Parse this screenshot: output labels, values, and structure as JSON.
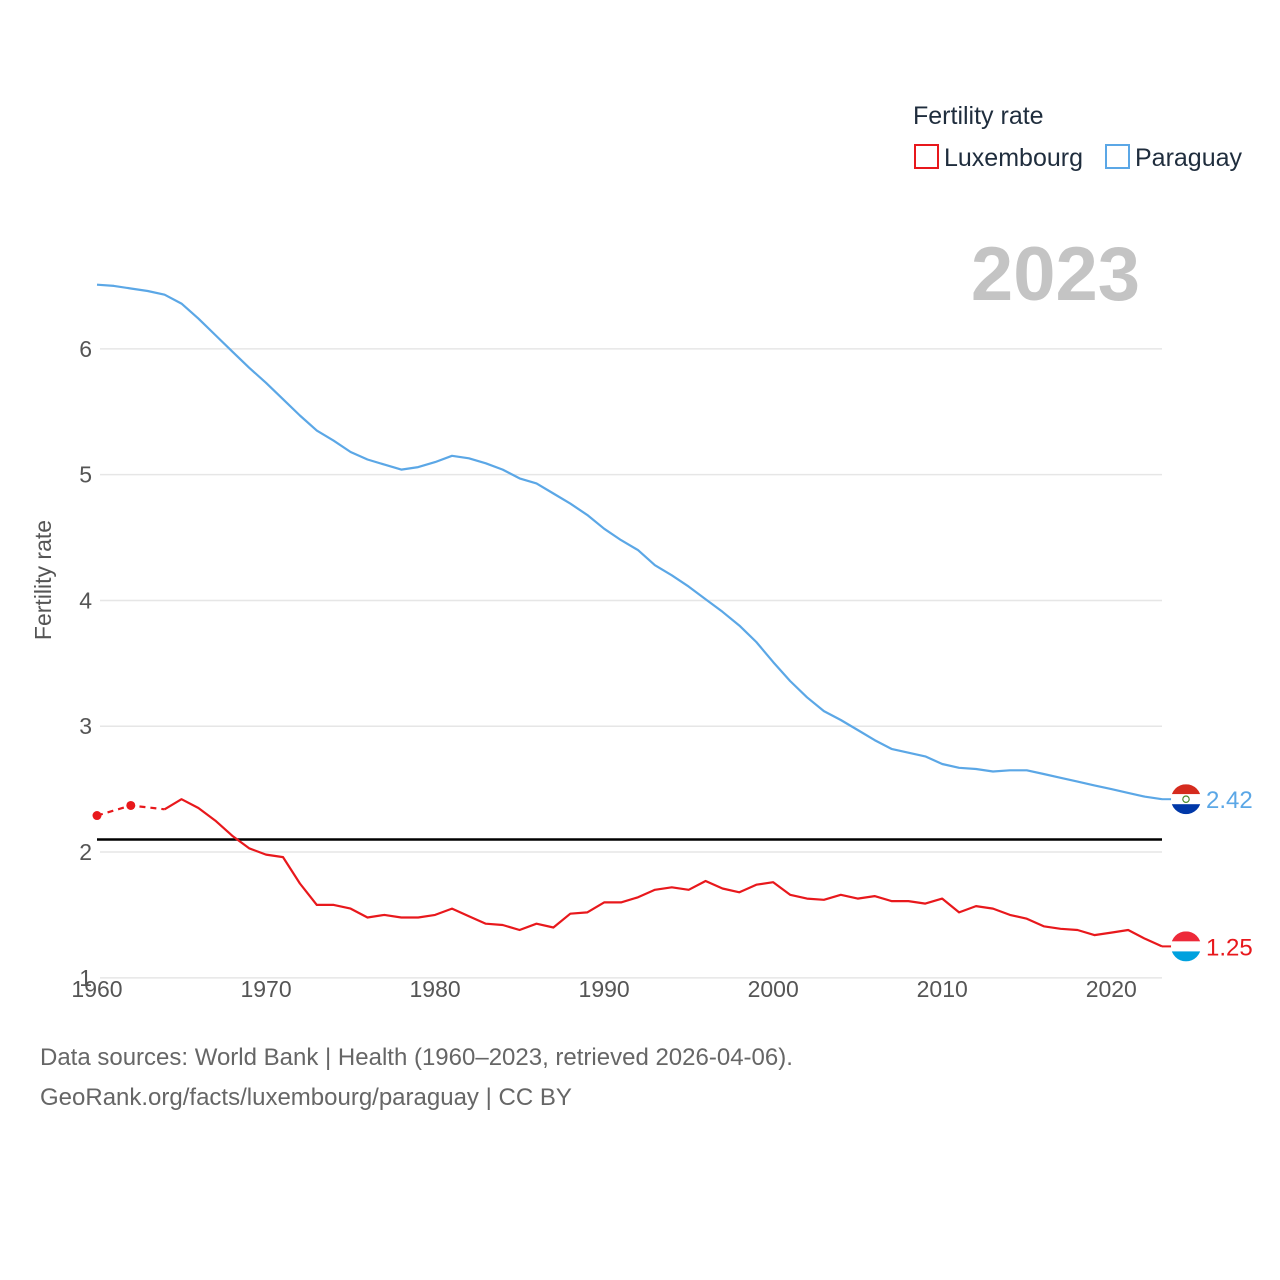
{
  "chart_data": {
    "type": "line",
    "title": "Fertility rate",
    "ylabel": "Fertility rate",
    "xlabel": "",
    "year_label": "2023",
    "xlim": [
      1960,
      2023
    ],
    "ylim": [
      0.8,
      6.7
    ],
    "x_ticks": [
      1960,
      1970,
      1980,
      1990,
      2000,
      2010,
      2020
    ],
    "y_ticks": [
      1,
      2,
      3,
      4,
      5,
      6
    ],
    "grid": true,
    "legend": {
      "title": "Fertility rate",
      "position": "top-right"
    },
    "reference_line": {
      "y": 2.1,
      "color": "#000000"
    },
    "series": [
      {
        "name": "Luxembourg",
        "color": "#e8181c",
        "end_label": "1.25",
        "estimated_points": [
          [
            1960,
            2.29
          ],
          [
            1962,
            2.37
          ],
          [
            1964,
            2.34
          ]
        ],
        "points": [
          [
            1964,
            2.34
          ],
          [
            1965,
            2.42
          ],
          [
            1966,
            2.35
          ],
          [
            1967,
            2.25
          ],
          [
            1968,
            2.13
          ],
          [
            1969,
            2.03
          ],
          [
            1970,
            1.98
          ],
          [
            1971,
            1.96
          ],
          [
            1972,
            1.75
          ],
          [
            1973,
            1.58
          ],
          [
            1974,
            1.58
          ],
          [
            1975,
            1.55
          ],
          [
            1976,
            1.48
          ],
          [
            1977,
            1.5
          ],
          [
            1978,
            1.48
          ],
          [
            1979,
            1.48
          ],
          [
            1980,
            1.5
          ],
          [
            1981,
            1.55
          ],
          [
            1982,
            1.49
          ],
          [
            1983,
            1.43
          ],
          [
            1984,
            1.42
          ],
          [
            1985,
            1.38
          ],
          [
            1986,
            1.43
          ],
          [
            1987,
            1.4
          ],
          [
            1988,
            1.51
          ],
          [
            1989,
            1.52
          ],
          [
            1990,
            1.6
          ],
          [
            1991,
            1.6
          ],
          [
            1992,
            1.64
          ],
          [
            1993,
            1.7
          ],
          [
            1994,
            1.72
          ],
          [
            1995,
            1.7
          ],
          [
            1996,
            1.77
          ],
          [
            1997,
            1.71
          ],
          [
            1998,
            1.68
          ],
          [
            1999,
            1.74
          ],
          [
            2000,
            1.76
          ],
          [
            2001,
            1.66
          ],
          [
            2002,
            1.63
          ],
          [
            2003,
            1.62
          ],
          [
            2004,
            1.66
          ],
          [
            2005,
            1.63
          ],
          [
            2006,
            1.65
          ],
          [
            2007,
            1.61
          ],
          [
            2008,
            1.61
          ],
          [
            2009,
            1.59
          ],
          [
            2010,
            1.63
          ],
          [
            2011,
            1.52
          ],
          [
            2012,
            1.57
          ],
          [
            2013,
            1.55
          ],
          [
            2014,
            1.5
          ],
          [
            2015,
            1.47
          ],
          [
            2016,
            1.41
          ],
          [
            2017,
            1.39
          ],
          [
            2018,
            1.38
          ],
          [
            2019,
            1.34
          ],
          [
            2020,
            1.36
          ],
          [
            2021,
            1.38
          ],
          [
            2022,
            1.31
          ],
          [
            2023,
            1.25
          ]
        ]
      },
      {
        "name": "Paraguay",
        "color": "#5ba7e6",
        "end_label": "2.42",
        "estimated_points": [],
        "points": [
          [
            1960,
            6.51
          ],
          [
            1961,
            6.5
          ],
          [
            1962,
            6.48
          ],
          [
            1963,
            6.46
          ],
          [
            1964,
            6.43
          ],
          [
            1965,
            6.36
          ],
          [
            1966,
            6.24
          ],
          [
            1967,
            6.11
          ],
          [
            1968,
            5.98
          ],
          [
            1969,
            5.85
          ],
          [
            1970,
            5.73
          ],
          [
            1971,
            5.6
          ],
          [
            1972,
            5.47
          ],
          [
            1973,
            5.35
          ],
          [
            1974,
            5.27
          ],
          [
            1975,
            5.18
          ],
          [
            1976,
            5.12
          ],
          [
            1977,
            5.08
          ],
          [
            1978,
            5.04
          ],
          [
            1979,
            5.06
          ],
          [
            1980,
            5.1
          ],
          [
            1981,
            5.15
          ],
          [
            1982,
            5.13
          ],
          [
            1983,
            5.09
          ],
          [
            1984,
            5.04
          ],
          [
            1985,
            4.97
          ],
          [
            1986,
            4.93
          ],
          [
            1987,
            4.85
          ],
          [
            1988,
            4.77
          ],
          [
            1989,
            4.68
          ],
          [
            1990,
            4.57
          ],
          [
            1991,
            4.48
          ],
          [
            1992,
            4.4
          ],
          [
            1993,
            4.28
          ],
          [
            1994,
            4.2
          ],
          [
            1995,
            4.11
          ],
          [
            1996,
            4.01
          ],
          [
            1997,
            3.91
          ],
          [
            1998,
            3.8
          ],
          [
            1999,
            3.67
          ],
          [
            2000,
            3.51
          ],
          [
            2001,
            3.36
          ],
          [
            2002,
            3.23
          ],
          [
            2003,
            3.12
          ],
          [
            2004,
            3.05
          ],
          [
            2005,
            2.97
          ],
          [
            2006,
            2.89
          ],
          [
            2007,
            2.82
          ],
          [
            2008,
            2.79
          ],
          [
            2009,
            2.76
          ],
          [
            2010,
            2.7
          ],
          [
            2011,
            2.67
          ],
          [
            2012,
            2.66
          ],
          [
            2013,
            2.64
          ],
          [
            2014,
            2.65
          ],
          [
            2015,
            2.65
          ],
          [
            2016,
            2.62
          ],
          [
            2017,
            2.59
          ],
          [
            2018,
            2.56
          ],
          [
            2019,
            2.53
          ],
          [
            2020,
            2.5
          ],
          [
            2021,
            2.47
          ],
          [
            2022,
            2.44
          ],
          [
            2023,
            2.42
          ]
        ]
      }
    ]
  },
  "footer": {
    "line1": "Data sources: World Bank | Health (1960–2023, retrieved 2026-04-06).",
    "line2": "GeoRank.org/facts/luxembourg/paraguay | CC BY"
  }
}
